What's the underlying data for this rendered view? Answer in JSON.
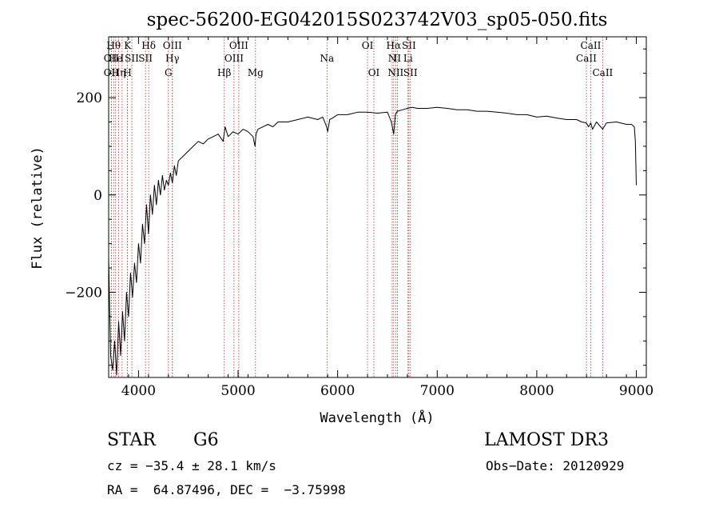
{
  "chart_data": {
    "type": "line",
    "title": "spec-56200-EG042015S023742V03_sp05-050.fits",
    "xlabel": "Wavelength (Å)",
    "ylabel": "Flux (relative)",
    "xlim": [
      3700,
      9100
    ],
    "ylim": [
      -375,
      325
    ],
    "x_ticks": [
      {
        "value": 4000,
        "label": "4000"
      },
      {
        "value": 5000,
        "label": "5000"
      },
      {
        "value": 6000,
        "label": "6000"
      },
      {
        "value": 7000,
        "label": "7000"
      },
      {
        "value": 8000,
        "label": "8000"
      },
      {
        "value": 9000,
        "label": "9000"
      }
    ],
    "y_ticks": [
      {
        "value": 200,
        "label": "200"
      },
      {
        "value": 0,
        "label": "0"
      },
      {
        "value": -200,
        "label": "−200"
      }
    ],
    "series": [
      {
        "name": "spectrum",
        "color": "#000000",
        "x": [
          3700,
          3720,
          3740,
          3760,
          3780,
          3800,
          3820,
          3840,
          3860,
          3880,
          3900,
          3920,
          3940,
          3960,
          3980,
          4000,
          4020,
          4040,
          4060,
          4080,
          4100,
          4120,
          4140,
          4160,
          4180,
          4200,
          4220,
          4240,
          4260,
          4280,
          4300,
          4320,
          4340,
          4360,
          4380,
          4400,
          4450,
          4500,
          4550,
          4600,
          4650,
          4700,
          4750,
          4800,
          4850,
          4870,
          4900,
          4950,
          5000,
          5050,
          5100,
          5150,
          5170,
          5180,
          5200,
          5250,
          5300,
          5350,
          5400,
          5500,
          5600,
          5700,
          5800,
          5850,
          5890,
          5900,
          5920,
          5950,
          6000,
          6100,
          6200,
          6300,
          6400,
          6500,
          6540,
          6563,
          6580,
          6600,
          6650,
          6700,
          6750,
          6800,
          6900,
          7000,
          7100,
          7200,
          7300,
          7400,
          7500,
          7600,
          7700,
          7800,
          7900,
          8000,
          8100,
          8200,
          8300,
          8400,
          8450,
          8498,
          8520,
          8542,
          8560,
          8600,
          8662,
          8700,
          8800,
          8900,
          8950,
          8980,
          8990,
          9000
        ],
        "y": [
          -130,
          -330,
          -360,
          -300,
          -370,
          -260,
          -330,
          -240,
          -300,
          -200,
          -250,
          -160,
          -210,
          -140,
          -180,
          -100,
          -140,
          -60,
          -100,
          -20,
          -80,
          0,
          -40,
          20,
          -20,
          30,
          0,
          40,
          10,
          30,
          20,
          45,
          25,
          60,
          40,
          70,
          80,
          90,
          100,
          110,
          105,
          115,
          120,
          125,
          110,
          140,
          120,
          130,
          125,
          135,
          130,
          120,
          100,
          125,
          135,
          140,
          145,
          140,
          150,
          150,
          155,
          160,
          155,
          160,
          140,
          130,
          155,
          158,
          165,
          165,
          170,
          170,
          168,
          170,
          150,
          125,
          165,
          172,
          175,
          178,
          180,
          178,
          178,
          180,
          178,
          175,
          175,
          172,
          172,
          170,
          168,
          165,
          165,
          160,
          162,
          158,
          155,
          155,
          150,
          148,
          140,
          148,
          135,
          150,
          135,
          148,
          150,
          145,
          145,
          140,
          110,
          20
        ]
      }
    ],
    "spectral_lines": [
      {
        "wavelength": 3727,
        "label": "OII",
        "row": 2
      },
      {
        "wavelength": 3727,
        "label": "OII",
        "row": 3
      },
      {
        "wavelength": 3750,
        "label": "Hθ",
        "row": 1
      },
      {
        "wavelength": 3770,
        "label": "He",
        "row": 2
      },
      {
        "wavelength": 3800,
        "label": "Hη",
        "row": 3
      },
      {
        "wavelength": 3835,
        "label": "I",
        "row": 2
      },
      {
        "wavelength": 3889,
        "label": "H",
        "row": 3
      },
      {
        "wavelength": 3890,
        "label": "K",
        "row": 1
      },
      {
        "wavelength": 3933,
        "label": "SII",
        "row": 2
      },
      {
        "wavelength": 4102,
        "label": "Hδ",
        "row": 1
      },
      {
        "wavelength": 4070,
        "label": "SII",
        "row": 2
      },
      {
        "wavelength": 4340,
        "label": "OIII",
        "row": 1
      },
      {
        "wavelength": 4340,
        "label": "Hγ",
        "row": 2
      },
      {
        "wavelength": 4300,
        "label": "G",
        "row": 3
      },
      {
        "wavelength": 4861,
        "label": "Hβ",
        "row": 3
      },
      {
        "wavelength": 4959,
        "label": "OIII",
        "row": 2
      },
      {
        "wavelength": 5007,
        "label": "OIII",
        "row": 1
      },
      {
        "wavelength": 5175,
        "label": "Mg",
        "row": 3
      },
      {
        "wavelength": 5893,
        "label": "Na",
        "row": 2
      },
      {
        "wavelength": 6300,
        "label": "OI",
        "row": 1
      },
      {
        "wavelength": 6364,
        "label": "OI",
        "row": 3
      },
      {
        "wavelength": 6548,
        "label": "N",
        "row": 2
      },
      {
        "wavelength": 6563,
        "label": "Hα",
        "row": 1
      },
      {
        "wavelength": 6583,
        "label": "NII",
        "row": 3
      },
      {
        "wavelength": 6600,
        "label": "II",
        "row": 2
      },
      {
        "wavelength": 6707,
        "label": "Li",
        "row": 2
      },
      {
        "wavelength": 6716,
        "label": "SII",
        "row": 1
      },
      {
        "wavelength": 6731,
        "label": "SII",
        "row": 3
      },
      {
        "wavelength": 8498,
        "label": "CaII",
        "row": 2
      },
      {
        "wavelength": 8542,
        "label": "CaII",
        "row": 1
      },
      {
        "wavelength": 8662,
        "label": "CaII",
        "row": 3
      }
    ]
  },
  "info": {
    "class": "STAR",
    "subclass": "G6",
    "survey": "LAMOST DR3",
    "cz": "cz = −35.4 ± 28.1 km/s",
    "obs_date": "Obs−Date: 20120929",
    "coords": "RA =  64.87496, DEC =  −3.75998"
  }
}
